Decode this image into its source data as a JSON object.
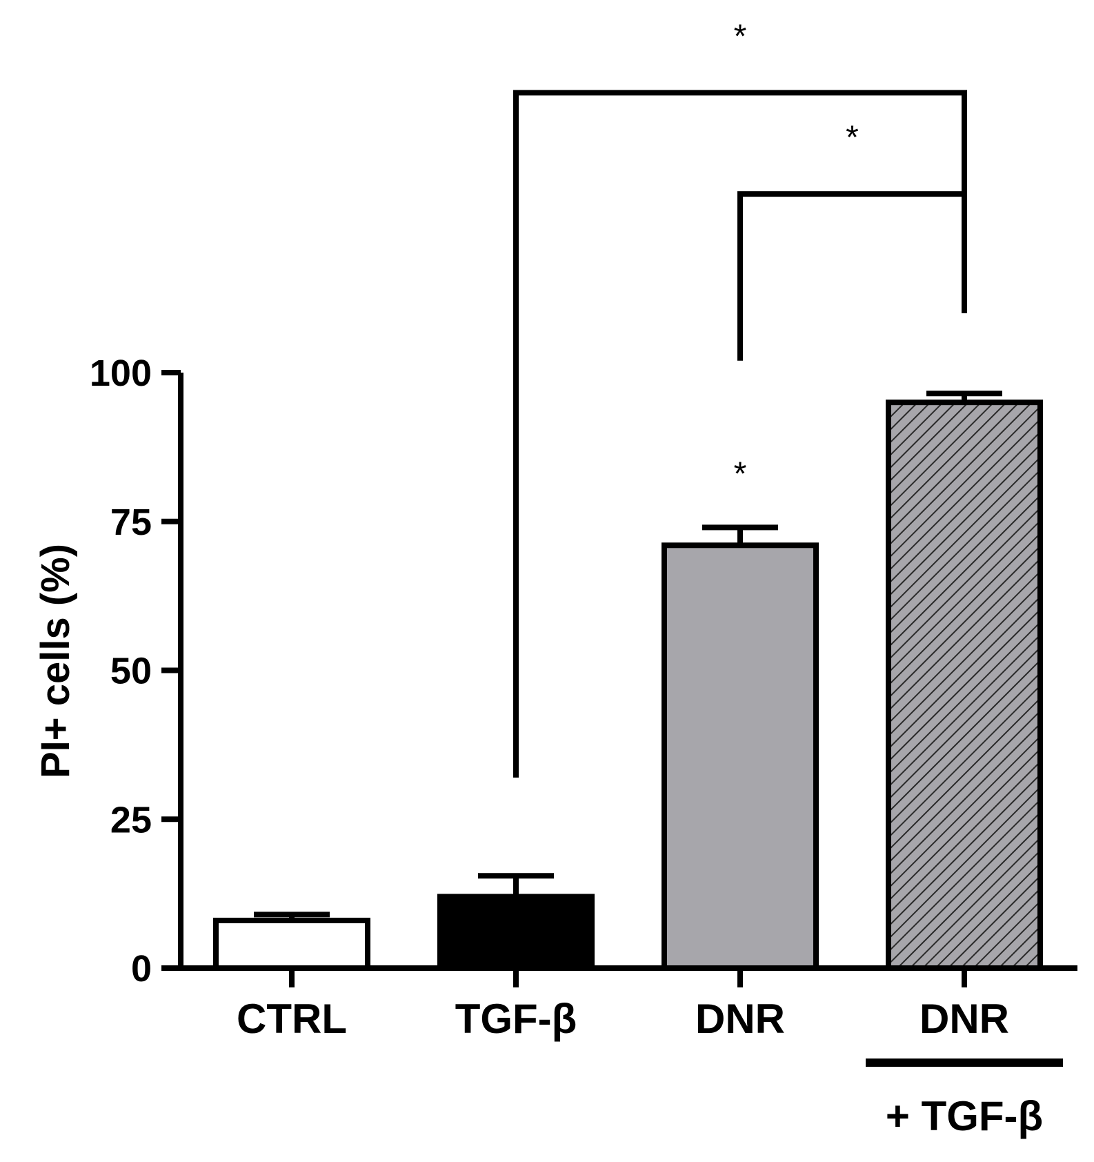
{
  "chart_data": {
    "type": "bar",
    "ylabel": "PI+ cells (%)",
    "xlabel": "",
    "ylim": [
      0,
      100
    ],
    "yticks": [
      0,
      25,
      50,
      75,
      100
    ],
    "grid": false,
    "legend": "none",
    "categories": [
      {
        "label": "CTRL",
        "sublabel": ""
      },
      {
        "label": "TGF-β",
        "sublabel": ""
      },
      {
        "label": "DNR",
        "sublabel": ""
      },
      {
        "label": "DNR",
        "sublabel": "+ TGF-β"
      }
    ],
    "values": [
      8,
      12,
      71,
      95
    ],
    "errors": [
      1,
      3.5,
      3,
      1.5
    ],
    "bar_styles": [
      {
        "fill": "#ffffff",
        "pattern": "none"
      },
      {
        "fill": "#000000",
        "pattern": "none"
      },
      {
        "fill": "#a7a6ab",
        "pattern": "none"
      },
      {
        "fill": "#a7a6ab",
        "pattern": "diagonal-hatch"
      }
    ],
    "bar_annotations": [
      {
        "category_index": 2,
        "text": "*"
      }
    ],
    "comparisons": [
      {
        "from": 1,
        "to": 3,
        "text": "*",
        "from_y": 32,
        "to_y": 110,
        "bracket_y": 147
      },
      {
        "from": 2,
        "to": 3,
        "text": "*",
        "from_y": 102,
        "to_y": 110,
        "bracket_y": 130
      }
    ]
  }
}
